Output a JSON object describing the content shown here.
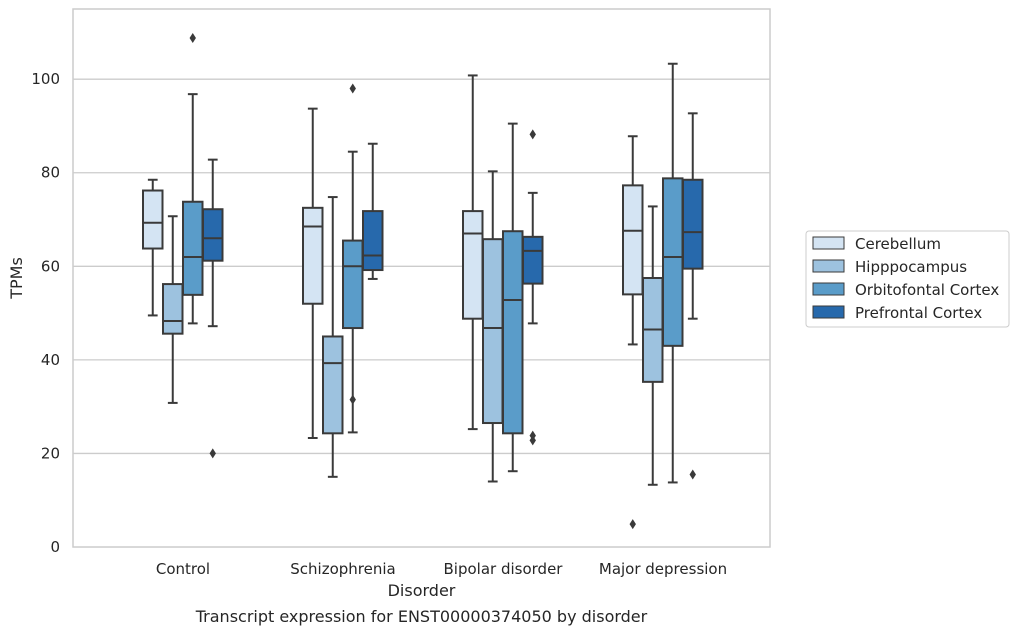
{
  "chart_data": {
    "type": "boxplot",
    "xlabel": "Disorder",
    "ylabel": "TPMs",
    "caption": "Transcript expression for ENST00000374050 by disorder",
    "ylim": [
      0,
      115
    ],
    "yticks": [
      0,
      20,
      40,
      60,
      80,
      100
    ],
    "grid": "horizontal",
    "legend_position": "right",
    "categories": [
      "Control",
      "Schizophrenia",
      "Bipolar disorder",
      "Major depression"
    ],
    "series": [
      {
        "name": "Cerebellum",
        "color": "#d4e4f3",
        "boxes": [
          {
            "whislo": 49.5,
            "q1": 63.8,
            "med": 69.3,
            "q3": 76.2,
            "whishi": 78.5,
            "fliers": []
          },
          {
            "whislo": 23.3,
            "q1": 52.0,
            "med": 68.5,
            "q3": 72.5,
            "whishi": 93.7,
            "fliers": []
          },
          {
            "whislo": 25.2,
            "q1": 48.8,
            "med": 67.0,
            "q3": 71.8,
            "whishi": 100.8,
            "fliers": []
          },
          {
            "whislo": 43.3,
            "q1": 54.0,
            "med": 67.6,
            "q3": 77.3,
            "whishi": 87.8,
            "fliers": [
              4.9
            ]
          }
        ]
      },
      {
        "name": "Hipppocampus",
        "color": "#9dc2df",
        "boxes": [
          {
            "whislo": 30.8,
            "q1": 45.6,
            "med": 48.3,
            "q3": 56.2,
            "whishi": 70.7,
            "fliers": []
          },
          {
            "whislo": 15.0,
            "q1": 24.3,
            "med": 39.3,
            "q3": 45.0,
            "whishi": 74.8,
            "fliers": []
          },
          {
            "whislo": 14.0,
            "q1": 26.5,
            "med": 46.8,
            "q3": 65.8,
            "whishi": 80.3,
            "fliers": []
          },
          {
            "whislo": 13.3,
            "q1": 35.3,
            "med": 46.5,
            "q3": 57.5,
            "whishi": 72.8,
            "fliers": []
          }
        ]
      },
      {
        "name": "Orbitofontal Cortex",
        "color": "#5a9cc9",
        "boxes": [
          {
            "whislo": 47.8,
            "q1": 53.9,
            "med": 62.0,
            "q3": 73.8,
            "whishi": 96.8,
            "fliers": [
              108.8
            ]
          },
          {
            "whislo": 24.5,
            "q1": 46.8,
            "med": 60.0,
            "q3": 65.5,
            "whishi": 84.5,
            "fliers": [
              98.0,
              31.5
            ]
          },
          {
            "whislo": 16.2,
            "q1": 24.3,
            "med": 52.8,
            "q3": 67.5,
            "whishi": 90.5,
            "fliers": []
          },
          {
            "whislo": 13.8,
            "q1": 43.0,
            "med": 62.0,
            "q3": 78.8,
            "whishi": 103.3,
            "fliers": []
          }
        ]
      },
      {
        "name": "Prefrontal Cortex",
        "color": "#2769ac",
        "boxes": [
          {
            "whislo": 47.2,
            "q1": 61.2,
            "med": 66.0,
            "q3": 72.2,
            "whishi": 82.8,
            "fliers": [
              20.0
            ]
          },
          {
            "whislo": 57.3,
            "q1": 59.2,
            "med": 62.3,
            "q3": 71.8,
            "whishi": 86.2,
            "fliers": []
          },
          {
            "whislo": 47.8,
            "q1": 56.3,
            "med": 63.3,
            "q3": 66.3,
            "whishi": 75.7,
            "fliers": [
              88.2,
              23.8,
              22.8
            ]
          },
          {
            "whislo": 48.8,
            "q1": 59.5,
            "med": 67.3,
            "q3": 78.5,
            "whishi": 92.7,
            "fliers": [
              15.5
            ]
          }
        ]
      }
    ]
  }
}
